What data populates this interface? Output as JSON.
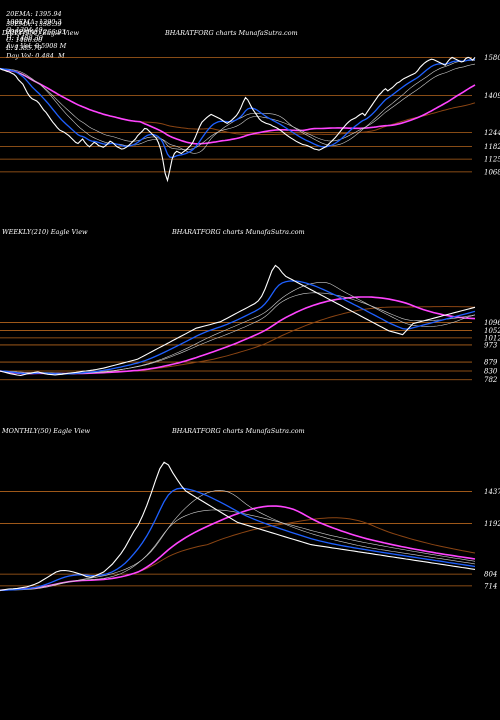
{
  "header": {
    "row1": [
      "20EMA: 1395.94",
      "100EMA: 1290.3",
      "O: 1394.40",
      "H: 1408.30",
      "Avg Vol: 0.5908 M"
    ],
    "row2": [
      "30EMA: 1338.39",
      "200EMA: 1266.93",
      "C: 1406.00",
      "L: 1385.70",
      "Day Vol: 0.484  M"
    ]
  },
  "panels": [
    {
      "title": "DAILY(250) Eagle  View",
      "symbol": "BHARATFORG charts MunafaSutra.com"
    },
    {
      "title": "WEEKLY(210) Eagle  View",
      "symbol": "BHARATFORG charts MunafaSutra.com"
    },
    {
      "title": "MONTHLY(50) Eagle  View",
      "symbol": "BHARATFORG charts MunafaSutra.com"
    }
  ],
  "colors": {
    "price": "#ffffff",
    "ema20": "#1e60ff",
    "ema30": "#cfcfcf",
    "ema100": "#ff44ff",
    "ema200": "#8b4513",
    "level_line": "#b5651d",
    "background": "#000000"
  },
  "chart_data": [
    {
      "type": "line",
      "name": "DAILY(250)",
      "levels": [
        1580,
        1409,
        1244,
        1182,
        1125,
        1068
      ],
      "ylim": [
        960,
        1640
      ],
      "price": [
        1530,
        1525,
        1522,
        1518,
        1515,
        1510,
        1505,
        1495,
        1480,
        1470,
        1460,
        1440,
        1420,
        1405,
        1395,
        1390,
        1385,
        1375,
        1360,
        1345,
        1335,
        1320,
        1305,
        1290,
        1278,
        1265,
        1255,
        1250,
        1245,
        1238,
        1230,
        1220,
        1210,
        1200,
        1195,
        1205,
        1215,
        1200,
        1188,
        1180,
        1190,
        1200,
        1195,
        1185,
        1182,
        1178,
        1185,
        1195,
        1205,
        1200,
        1190,
        1180,
        1175,
        1170,
        1172,
        1178,
        1185,
        1195,
        1205,
        1215,
        1230,
        1240,
        1250,
        1262,
        1260,
        1250,
        1240,
        1230,
        1220,
        1200,
        1170,
        1120,
        1060,
        1030,
        1075,
        1125,
        1150,
        1160,
        1155,
        1150,
        1158,
        1165,
        1175,
        1185,
        1200,
        1220,
        1245,
        1270,
        1290,
        1300,
        1310,
        1318,
        1325,
        1320,
        1315,
        1310,
        1305,
        1298,
        1290,
        1285,
        1292,
        1300,
        1310,
        1320,
        1335,
        1355,
        1380,
        1400,
        1390,
        1370,
        1350,
        1335,
        1320,
        1305,
        1295,
        1290,
        1285,
        1282,
        1278,
        1272,
        1268,
        1262,
        1255,
        1248,
        1240,
        1232,
        1225,
        1218,
        1212,
        1205,
        1200,
        1195,
        1190,
        1188,
        1185,
        1180,
        1175,
        1170,
        1168,
        1165,
        1170,
        1175,
        1180,
        1190,
        1200,
        1210,
        1220,
        1232,
        1245,
        1258,
        1270,
        1282,
        1292,
        1300,
        1305,
        1310,
        1318,
        1325,
        1330,
        1320,
        1335,
        1350,
        1365,
        1380,
        1395,
        1410,
        1420,
        1432,
        1440,
        1430,
        1438,
        1445,
        1455,
        1465,
        1470,
        1478,
        1485,
        1490,
        1495,
        1500,
        1505,
        1510,
        1520,
        1535,
        1545,
        1555,
        1562,
        1568,
        1572,
        1570,
        1565,
        1560,
        1555,
        1550,
        1545,
        1560,
        1572,
        1580,
        1575,
        1570,
        1565,
        1560,
        1562,
        1575,
        1580,
        1576,
        1568,
        1580
      ]
    },
    {
      "type": "line",
      "name": "WEEKLY(210)",
      "levels": [
        1096,
        1052,
        1012,
        973,
        879,
        830,
        782
      ],
      "ylim": [
        720,
        1500
      ],
      "price": [
        830,
        825,
        820,
        815,
        812,
        808,
        805,
        810,
        815,
        818,
        822,
        825,
        820,
        815,
        812,
        810,
        808,
        810,
        812,
        815,
        818,
        820,
        822,
        825,
        828,
        830,
        832,
        835,
        838,
        842,
        845,
        850,
        855,
        860,
        865,
        870,
        875,
        880,
        885,
        890,
        895,
        905,
        915,
        925,
        935,
        945,
        955,
        965,
        975,
        985,
        995,
        1005,
        1015,
        1025,
        1035,
        1045,
        1055,
        1065,
        1070,
        1075,
        1080,
        1085,
        1090,
        1095,
        1100,
        1110,
        1120,
        1130,
        1140,
        1150,
        1160,
        1170,
        1180,
        1190,
        1200,
        1215,
        1240,
        1280,
        1330,
        1380,
        1410,
        1395,
        1370,
        1350,
        1340,
        1330,
        1320,
        1310,
        1300,
        1290,
        1280,
        1270,
        1260,
        1250,
        1240,
        1230,
        1220,
        1210,
        1200,
        1190,
        1180,
        1170,
        1160,
        1150,
        1140,
        1130,
        1120,
        1110,
        1100,
        1090,
        1080,
        1070,
        1060,
        1050,
        1045,
        1040,
        1035,
        1030,
        1050,
        1070,
        1090,
        1095,
        1100,
        1105,
        1110,
        1115,
        1120,
        1125,
        1130,
        1135,
        1140,
        1145,
        1150,
        1155,
        1160,
        1165,
        1170,
        1175,
        1180
      ]
    },
    {
      "type": "line",
      "name": "MONTHLY(50)",
      "levels": [
        1437,
        1192,
        804,
        714
      ],
      "ylim": [
        560,
        1800
      ],
      "price": [
        680,
        685,
        690,
        692,
        695,
        700,
        705,
        715,
        725,
        740,
        760,
        780,
        800,
        820,
        830,
        832,
        828,
        820,
        810,
        800,
        785,
        780,
        790,
        805,
        820,
        850,
        880,
        920,
        960,
        1010,
        1070,
        1130,
        1180,
        1250,
        1330,
        1420,
        1520,
        1610,
        1660,
        1640,
        1580,
        1530,
        1480,
        1440,
        1420,
        1400,
        1380,
        1360,
        1340,
        1320,
        1300,
        1280,
        1260,
        1240,
        1220,
        1200,
        1190,
        1180,
        1170,
        1160,
        1150,
        1140,
        1130,
        1120,
        1110,
        1100,
        1090,
        1080,
        1070,
        1060,
        1050,
        1040,
        1030,
        1025,
        1020,
        1015,
        1010,
        1005,
        1000,
        995,
        990,
        985,
        980,
        975,
        970,
        965,
        960,
        955,
        950,
        945,
        940,
        935,
        930,
        925,
        920,
        915,
        910,
        905,
        900,
        895,
        890,
        885,
        880,
        875,
        870,
        865,
        860,
        855,
        850,
        845,
        840
      ]
    }
  ]
}
